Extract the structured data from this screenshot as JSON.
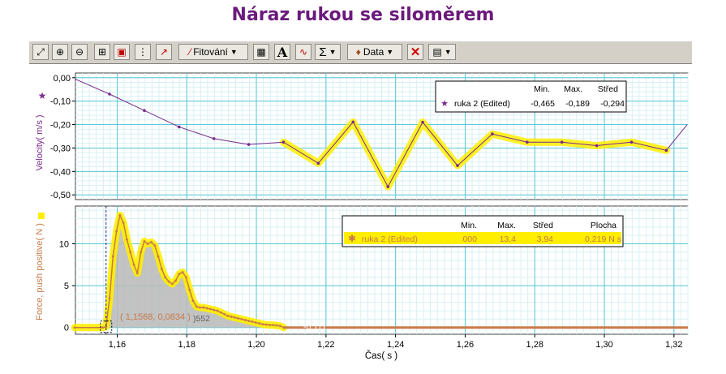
{
  "title": "Náraz rukou se siloměrem",
  "toolbar": {
    "buttons": [
      {
        "icon": "autoscale-icon",
        "glyph": "⤢"
      },
      {
        "icon": "zoom-in-icon",
        "glyph": "⊕"
      },
      {
        "icon": "zoom-out-icon",
        "glyph": "⊖"
      },
      {
        "icon": "zoom-region-icon",
        "glyph": "⊞"
      },
      {
        "icon": "lock-icon",
        "glyph": "▣"
      },
      {
        "icon": "examine-icon",
        "glyph": "⋮"
      },
      {
        "icon": "tangent-icon",
        "glyph": "↗"
      }
    ],
    "fit_label": "Fitování",
    "data_label": "Data",
    "sigma_glyph": "Σ",
    "text_glyph": "A"
  },
  "top_chart": {
    "ylabel": "Velocity( m/s )",
    "marker_icon": "star-icon",
    "yticks": [
      "0,00",
      "-0,10",
      "-0,20",
      "-0,30",
      "-0,40",
      "-0,50"
    ],
    "legend": {
      "headers": [
        "Min.",
        "Max.",
        "Střed"
      ],
      "series": "ruka 2 (Edited)",
      "values": [
        "-0,465",
        "-0,189",
        "-0,294"
      ]
    }
  },
  "bottom_chart": {
    "ylabel": "Force, push positive( N )",
    "yticks": [
      "10",
      "5",
      "0"
    ],
    "legend": {
      "headers": [
        "Min.",
        "Max.",
        "Střed",
        "Plocha"
      ],
      "series": "ruka 2 (Edited)",
      "values": [
        "000",
        "13,4",
        "3,94",
        "0,219 N s"
      ]
    },
    "examine_readout": "( 1,1568, 0,0834 )",
    "value_label_1": ")552",
    "value_label_2": "-0,111"
  },
  "xaxis": {
    "label": "Čas( s )",
    "ticks": [
      "1,16",
      "1,18",
      "1,20",
      "1,22",
      "1,24",
      "1,26",
      "1,28",
      "1,30",
      "1,32"
    ]
  },
  "colors": {
    "title": "#6b1a7c",
    "velocity": "#7a2a8c",
    "force": "#c97a4a",
    "highlight": "#ffee00",
    "grid_major": "#58c8d8",
    "grid_minor": "#d8f0f4"
  },
  "chart_data": [
    {
      "type": "line",
      "ylabel": "Velocity( m/s )",
      "xlabel": "",
      "xlim": [
        1.148,
        1.324
      ],
      "ylim": [
        -0.52,
        0.02
      ],
      "series": [
        {
          "name": "ruka 2 (Edited)",
          "x": [
            1.1478,
            1.1578,
            1.1678,
            1.1778,
            1.1878,
            1.1978,
            1.2078,
            1.2178,
            1.2278,
            1.2378,
            1.2478,
            1.2578,
            1.2678,
            1.2778,
            1.2878,
            1.2978,
            1.3078,
            1.3178,
            1.3238
          ],
          "y": [
            -0.005,
            -0.07,
            -0.14,
            -0.21,
            -0.26,
            -0.285,
            -0.275,
            -0.365,
            -0.189,
            -0.465,
            -0.19,
            -0.375,
            -0.24,
            -0.275,
            -0.275,
            -0.29,
            -0.275,
            -0.31,
            -0.2
          ],
          "highlight_from_x": 1.2078
        }
      ]
    },
    {
      "type": "line",
      "ylabel": "Force, push positive( N )",
      "xlabel": "Čas( s )",
      "xlim": [
        1.148,
        1.324
      ],
      "ylim": [
        -0.8,
        14.5
      ],
      "series": [
        {
          "name": "ruka 2 (Edited)",
          "x": [
            1.1478,
            1.1558,
            1.1568,
            1.1578,
            1.1588,
            1.1598,
            1.1608,
            1.1618,
            1.1628,
            1.1638,
            1.1648,
            1.1658,
            1.1668,
            1.1678,
            1.1688,
            1.1698,
            1.1708,
            1.1718,
            1.1728,
            1.1738,
            1.1748,
            1.1758,
            1.1768,
            1.1778,
            1.1788,
            1.1798,
            1.1808,
            1.1818,
            1.1828,
            1.1838,
            1.1848,
            1.1858,
            1.1868,
            1.1878,
            1.1888,
            1.1898,
            1.1908,
            1.1918,
            1.1928,
            1.1938,
            1.1948,
            1.1958,
            1.1968,
            1.1978,
            1.1988,
            1.1998,
            1.2008,
            1.2018,
            1.2028,
            1.2038,
            1.2048,
            1.2058,
            1.2068,
            1.2078,
            1.2178,
            1.2278,
            1.2378,
            1.2478,
            1.2578,
            1.2678,
            1.2778,
            1.2878,
            1.2978,
            1.3078,
            1.3178,
            1.3238
          ],
          "y": [
            0,
            0,
            0.1,
            3.5,
            8.5,
            11.5,
            13.4,
            12.5,
            10.5,
            9.0,
            7.5,
            6.5,
            9.0,
            10.3,
            10.0,
            10.2,
            9.8,
            8.5,
            7.0,
            6.0,
            5.5,
            5.2,
            5.6,
            6.4,
            6.6,
            6.0,
            4.5,
            3.2,
            2.5,
            2.4,
            2.4,
            2.3,
            2.2,
            2.1,
            2.0,
            1.8,
            1.6,
            1.4,
            1.3,
            1.2,
            1.1,
            1.0,
            0.9,
            0.8,
            0.7,
            0.6,
            0.5,
            0.4,
            0.35,
            0.3,
            0.3,
            0.25,
            0.2,
            0,
            0,
            0,
            0,
            0,
            0,
            0,
            0,
            0,
            0,
            0,
            0,
            0
          ],
          "integral_region": [
            1.1568,
            1.2078
          ]
        }
      ]
    }
  ]
}
